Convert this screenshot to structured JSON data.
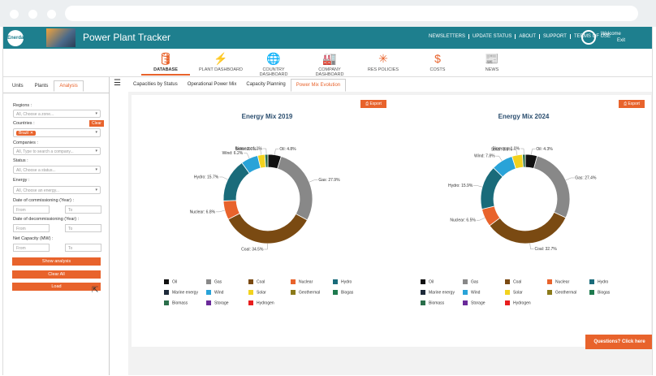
{
  "app": {
    "logo_text": "Enerdata",
    "title": "Power Plant Tracker"
  },
  "top_links": [
    "NEWSLETTERS",
    "UPDATE STATUS",
    "ABOUT",
    "SUPPORT",
    "TERMS OF USE"
  ],
  "user": {
    "welcome": "Welcome",
    "exit": "Exit"
  },
  "nav": [
    {
      "label": "DATABASE",
      "icon": "database-icon",
      "glyph": "🛢"
    },
    {
      "label": "PLANT DASHBOARD",
      "icon": "power-plant-icon",
      "glyph": "⚡"
    },
    {
      "label": "COUNTRY DASHBOARD",
      "icon": "globe-icon",
      "glyph": "🌐"
    },
    {
      "label": "COMPANY DASHBOARD",
      "icon": "factory-icon",
      "glyph": "🏭"
    },
    {
      "label": "RES POLICIES",
      "icon": "wind-turbine-icon",
      "glyph": "✳"
    },
    {
      "label": "COSTS",
      "icon": "dollar-icon",
      "glyph": "$"
    },
    {
      "label": "NEWS",
      "icon": "newspaper-icon",
      "glyph": "📰"
    }
  ],
  "left_tabs": [
    "Units",
    "Plants",
    "Analysis"
  ],
  "filters": {
    "regions_label": "Regions :",
    "regions_placeholder": "All, Choose a zone...",
    "countries_label": "Countries :",
    "clear": "Clear",
    "country_chip": "Brazil",
    "companies_label": "Companies :",
    "companies_placeholder": "All, Type to search a company...",
    "status_label": "Status :",
    "status_placeholder": "All, Choose a status...",
    "energy_label": "Energy :",
    "energy_placeholder": "All, Choose an energy...",
    "commissioning_label": "Date of commissioning (Year) :",
    "decommissioning_label": "Date of decommissioning (Year) :",
    "capacity_label": "Net Capacity (MW) :",
    "from": "From",
    "to": "To",
    "show_analysis": "Show analysis",
    "clear_all": "Clear All",
    "load": "Load"
  },
  "right_tabs": [
    "Capacities by Status",
    "Operational Power Mix",
    "Capacity Planning",
    "Power Mix Evolution"
  ],
  "export_label": "Export",
  "questions": "Questions? Click here",
  "legend": [
    {
      "name": "Oil",
      "color": "#111111"
    },
    {
      "name": "Gas",
      "color": "#888888"
    },
    {
      "name": "Coal",
      "color": "#7a4a12"
    },
    {
      "name": "Nuclear",
      "color": "#e8632c"
    },
    {
      "name": "Hydro",
      "color": "#1a6b7a"
    },
    {
      "name": "Marine energy",
      "color": "#1e2a3a"
    },
    {
      "name": "Wind",
      "color": "#29a3d8"
    },
    {
      "name": "Solar",
      "color": "#f2d21e"
    },
    {
      "name": "Geothermal",
      "color": "#8b7a1a"
    },
    {
      "name": "Biogas",
      "color": "#1e7a4e"
    },
    {
      "name": "Biomass",
      "color": "#2a6e4a"
    },
    {
      "name": "Storage",
      "color": "#6a2a9a"
    },
    {
      "name": "Hydrogen",
      "color": "#e81e1e"
    }
  ],
  "chart_data": [
    {
      "type": "pie",
      "title": "Energy Mix 2019",
      "categories": [
        "Oil",
        "Gas",
        "Coal",
        "Nuclear",
        "Hydro",
        "Wind",
        "Solar",
        "Biomass"
      ],
      "values": [
        4.8,
        27.9,
        34.5,
        6.8,
        15.7,
        6.2,
        2.6,
        1.1
      ],
      "labels": [
        "Oil: 4.8%",
        "Gas: 27.9%",
        "Coal: 34.5%",
        "Nuclear: 6.8%",
        "Hydro: 15.7%",
        "Wind: 6.2%",
        "Solar: 2.6%",
        "Biomass: 1.1%"
      ]
    },
    {
      "type": "pie",
      "title": "Energy Mix 2024",
      "categories": [
        "Oil",
        "Gas",
        "Coal",
        "Nuclear",
        "Hydro",
        "Wind",
        "Solar",
        "Biomass"
      ],
      "values": [
        4.3,
        27.4,
        32.7,
        6.5,
        15.9,
        7.8,
        3.8,
        1.0
      ],
      "labels": [
        "Oil: 4.3%",
        "Gas: 27.4%",
        "Coal: 32.7%",
        "Nuclear: 6.5%",
        "Hydro: 15.9%",
        "Wind: 7.8%",
        "Solar: 3.8%",
        "Biomass: 1.0%"
      ]
    }
  ]
}
